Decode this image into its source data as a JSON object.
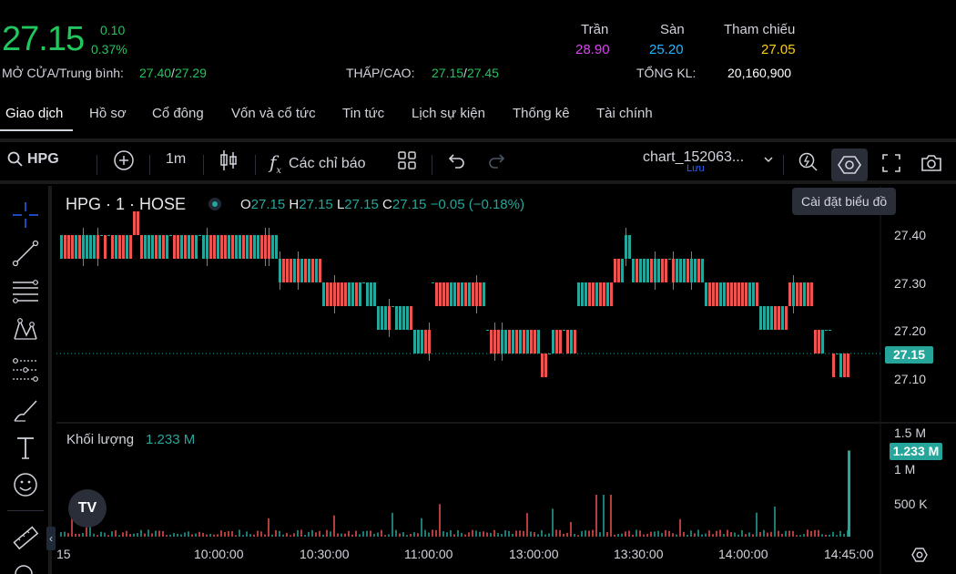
{
  "quote": {
    "price": "27.15",
    "change": "0.10",
    "change_pct": "0.37%",
    "open_avg_label": "MỞ CỬA/Trung bình:",
    "open": "27.40",
    "avg": "27.29",
    "low_high_label": "THẤP/CAO:",
    "low": "27.15",
    "high": "27.45",
    "total_vol_label": "TỔNG KL:",
    "total_vol": "20,160,900",
    "ceiling_label": "Trần",
    "ceiling": "28.90",
    "floor_label": "Sàn",
    "floor": "25.20",
    "ref_label": "Tham chiếu",
    "ref": "27.05",
    "colors": {
      "up": "#22c55e",
      "ceiling": "#d946ef",
      "floor": "#22b5ff",
      "ref": "#facc15"
    }
  },
  "tabs": [
    "Giao dịch",
    "Hồ sơ",
    "Cổ đông",
    "Vốn và cổ tức",
    "Tin tức",
    "Lịch sự kiện",
    "Thống kê",
    "Tài chính"
  ],
  "toolbar": {
    "symbol": "HPG",
    "interval": "1m",
    "indicators": "Các chỉ báo",
    "layout_name": "chart_152063...",
    "layout_sub": "Lưu",
    "tooltip": "Cài đặt biểu đồ"
  },
  "legend": {
    "title": "HPG · 1 · HOSE",
    "o_label": "O",
    "o": "27.15",
    "h_label": "H",
    "h": "27.15",
    "l_label": "L",
    "l": "27.15",
    "c_label": "C",
    "c": "27.15",
    "change": "−0.05 (−0.18%)",
    "volume_label": "Khối lượng",
    "volume_value": "1.233 M"
  },
  "chart_data": {
    "type": "candlestick",
    "price_axis": [
      "27.40",
      "27.30",
      "27.20",
      "27.10"
    ],
    "last_price": "27.15",
    "volume_axis": [
      "1.5 M",
      "1 M",
      "500 K"
    ],
    "last_volume": "1.233 M",
    "time_axis": [
      "15",
      "10:00:00",
      "10:30:00",
      "11:00:00",
      "13:00:00",
      "13:30:00",
      "14:00:00",
      "14:45:00"
    ],
    "ylim": [
      27.05,
      27.45
    ],
    "up_color": "#26a69a",
    "down_color": "#ef5350"
  }
}
